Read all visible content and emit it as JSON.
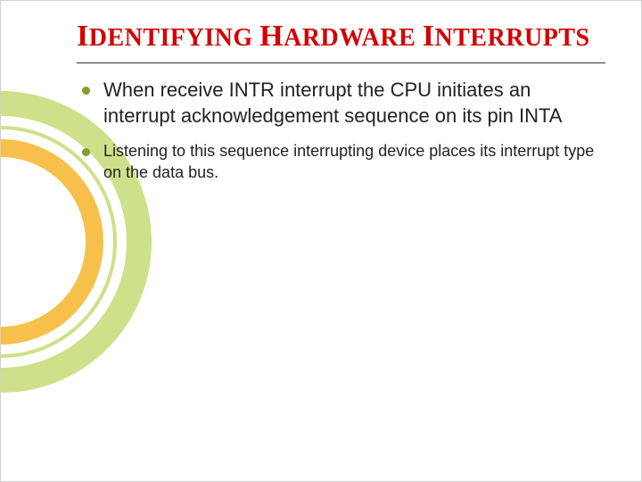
{
  "slide": {
    "title_html": "<span class=\"cap\">I</span>DENTIFYING <span class=\"cap\">H</span>ARDWARE <span class=\"cap\">I</span>NTERRUPTS",
    "bullets": [
      {
        "text": "When receive INTR interrupt the CPU initiates an interrupt acknowledgement sequence on its pin INTA",
        "size": "large"
      },
      {
        "text": "Listening to this sequence interrupting device places its interrupt type on the data bus.",
        "size": "small"
      }
    ]
  },
  "style": {
    "title_color": "#d40000",
    "title_fontsize_small": 28,
    "title_fontsize_cap": 34,
    "title_font": "Georgia, 'Times New Roman', serif",
    "body_font": "Verdana, Geneva, sans-serif",
    "bullet_color": "#7fa02a",
    "text_color": "#222222",
    "underline_color": "#333333",
    "background_color": "#ffffff",
    "arcs": {
      "outer": {
        "stroke": "#cfe08a",
        "stroke_width": 28
      },
      "middle": {
        "stroke": "#cfe08a",
        "stroke_width": 4
      },
      "inner": {
        "stroke": "#f6c04a",
        "stroke_width": 20
      }
    },
    "bullet_large_fontsize": 22,
    "bullet_small_fontsize": 18,
    "slide_width": 720,
    "slide_height": 540
  }
}
